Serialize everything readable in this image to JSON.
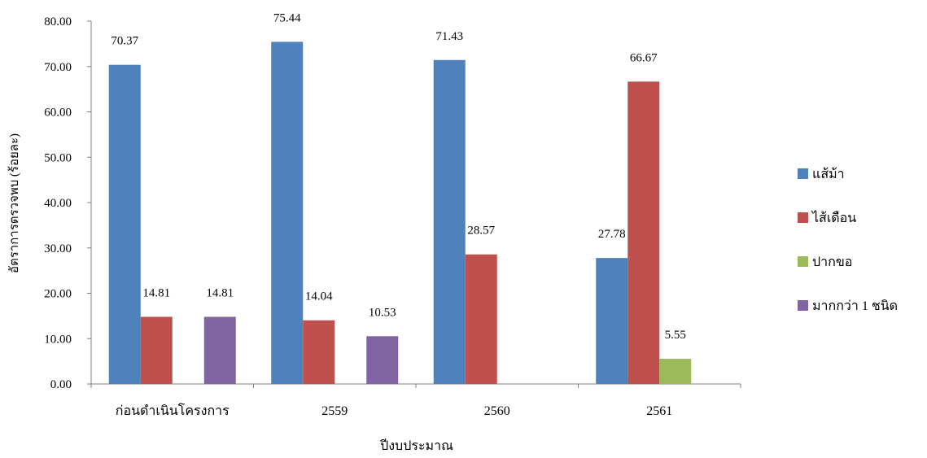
{
  "chart_data": {
    "type": "bar",
    "title": "",
    "xlabel": "ปีงบประมาณ",
    "ylabel": "อัตราการตรวจพบ (ร้อยละ)",
    "ylim": [
      0,
      80
    ],
    "yticks": [
      0,
      10,
      20,
      30,
      40,
      50,
      60,
      70,
      80
    ],
    "ytick_labels": [
      "0.00",
      "10.00",
      "20.00",
      "30.00",
      "40.00",
      "50.00",
      "60.00",
      "70.00",
      "80.00"
    ],
    "categories": [
      "ก่อนดำเนินโครงการ",
      "2559",
      "2560",
      "2561"
    ],
    "series": [
      {
        "name": "แส้ม้า",
        "color": "#4F81BD",
        "values": [
          70.37,
          75.44,
          71.43,
          27.78
        ],
        "labels": [
          "70.37",
          "75.44",
          "71.43",
          "27.78"
        ]
      },
      {
        "name": "ไส้เดือน",
        "color": "#C0504D",
        "values": [
          14.81,
          14.04,
          28.57,
          66.67
        ],
        "labels": [
          "14.81",
          "14.04",
          "28.57",
          "66.67"
        ]
      },
      {
        "name": "ปากขอ",
        "color": "#9BBB59",
        "values": [
          null,
          null,
          null,
          5.55
        ],
        "labels": [
          null,
          null,
          null,
          "5.55"
        ]
      },
      {
        "name": "มากกว่า 1 ชนิด",
        "color": "#8064A2",
        "values": [
          14.81,
          10.53,
          null,
          null
        ],
        "labels": [
          "14.81",
          "10.53",
          null,
          null
        ]
      }
    ],
    "grid": false,
    "legend_position": "right"
  }
}
